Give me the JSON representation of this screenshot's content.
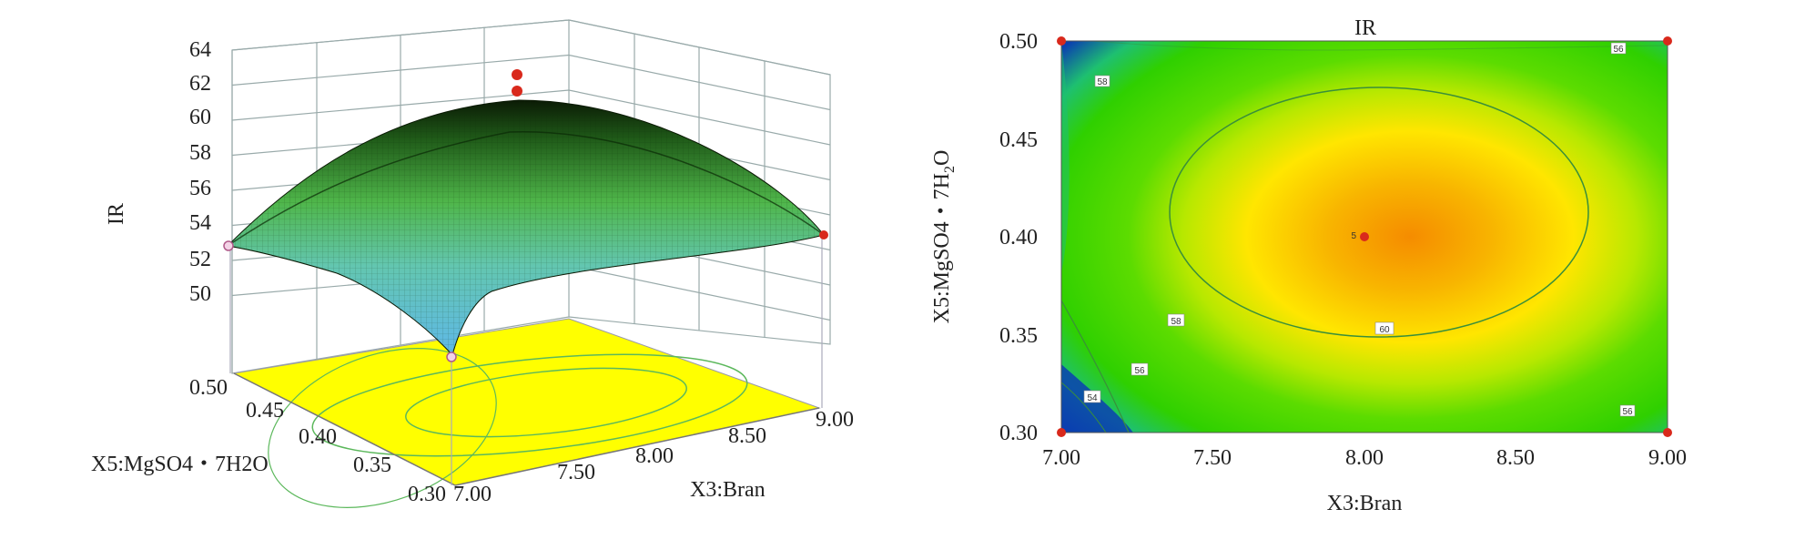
{
  "chart_data": [
    {
      "type": "surface",
      "z_label": "IR",
      "x_label": "X3:Bran",
      "y_label": "X5:MgSO4・7H2O",
      "z_ticks": [
        "64",
        "62",
        "60",
        "58",
        "56",
        "54",
        "52",
        "50"
      ],
      "x_ticks": [
        "7.00",
        "7.50",
        "8.00",
        "8.50",
        "9.00"
      ],
      "y_ticks": [
        "0.50",
        "0.45",
        "0.40",
        "0.35",
        "0.30"
      ],
      "zlim": [
        50,
        64
      ],
      "xlim": [
        7.0,
        9.0
      ],
      "ylim": [
        0.3,
        0.5
      ],
      "colors": {
        "low": "#5fb8e8",
        "mid": "#5cc04a",
        "high": "#0b1a05",
        "floor": "#ffff00"
      },
      "design_points": [
        {
          "x": 7.0,
          "y": 0.5,
          "z": 53.8
        },
        {
          "x": 9.0,
          "y": 0.3,
          "z": 55.5
        },
        {
          "x": 7.0,
          "y": 0.3,
          "z": 50.8
        },
        {
          "x": 8.0,
          "y": 0.4,
          "z": 62.0
        }
      ]
    },
    {
      "type": "contour",
      "title": "IR",
      "xlabel": "X3:Bran",
      "ylabel_main": "X5:MgSO4・7H",
      "ylabel_sub": "2",
      "ylabel_end": "O",
      "x_ticks": [
        "7.00",
        "7.50",
        "8.00",
        "8.50",
        "9.00"
      ],
      "y_ticks": [
        "0.50",
        "0.45",
        "0.40",
        "0.35",
        "0.30"
      ],
      "xlim": [
        7.0,
        9.0
      ],
      "ylim": [
        0.3,
        0.5
      ],
      "contour_labels": [
        "58",
        "56",
        "58",
        "56",
        "54",
        "60",
        "56",
        "58"
      ],
      "center_label": "5",
      "design_points": [
        {
          "x": 7.0,
          "y": 0.5
        },
        {
          "x": 9.0,
          "y": 0.5
        },
        {
          "x": 7.0,
          "y": 0.3
        },
        {
          "x": 9.0,
          "y": 0.3
        },
        {
          "x": 8.0,
          "y": 0.4
        }
      ],
      "colors": {
        "center": "#f58c00",
        "ring": "#ffe600",
        "outer": "#33d600",
        "cold": "#0a3fb0"
      }
    }
  ]
}
